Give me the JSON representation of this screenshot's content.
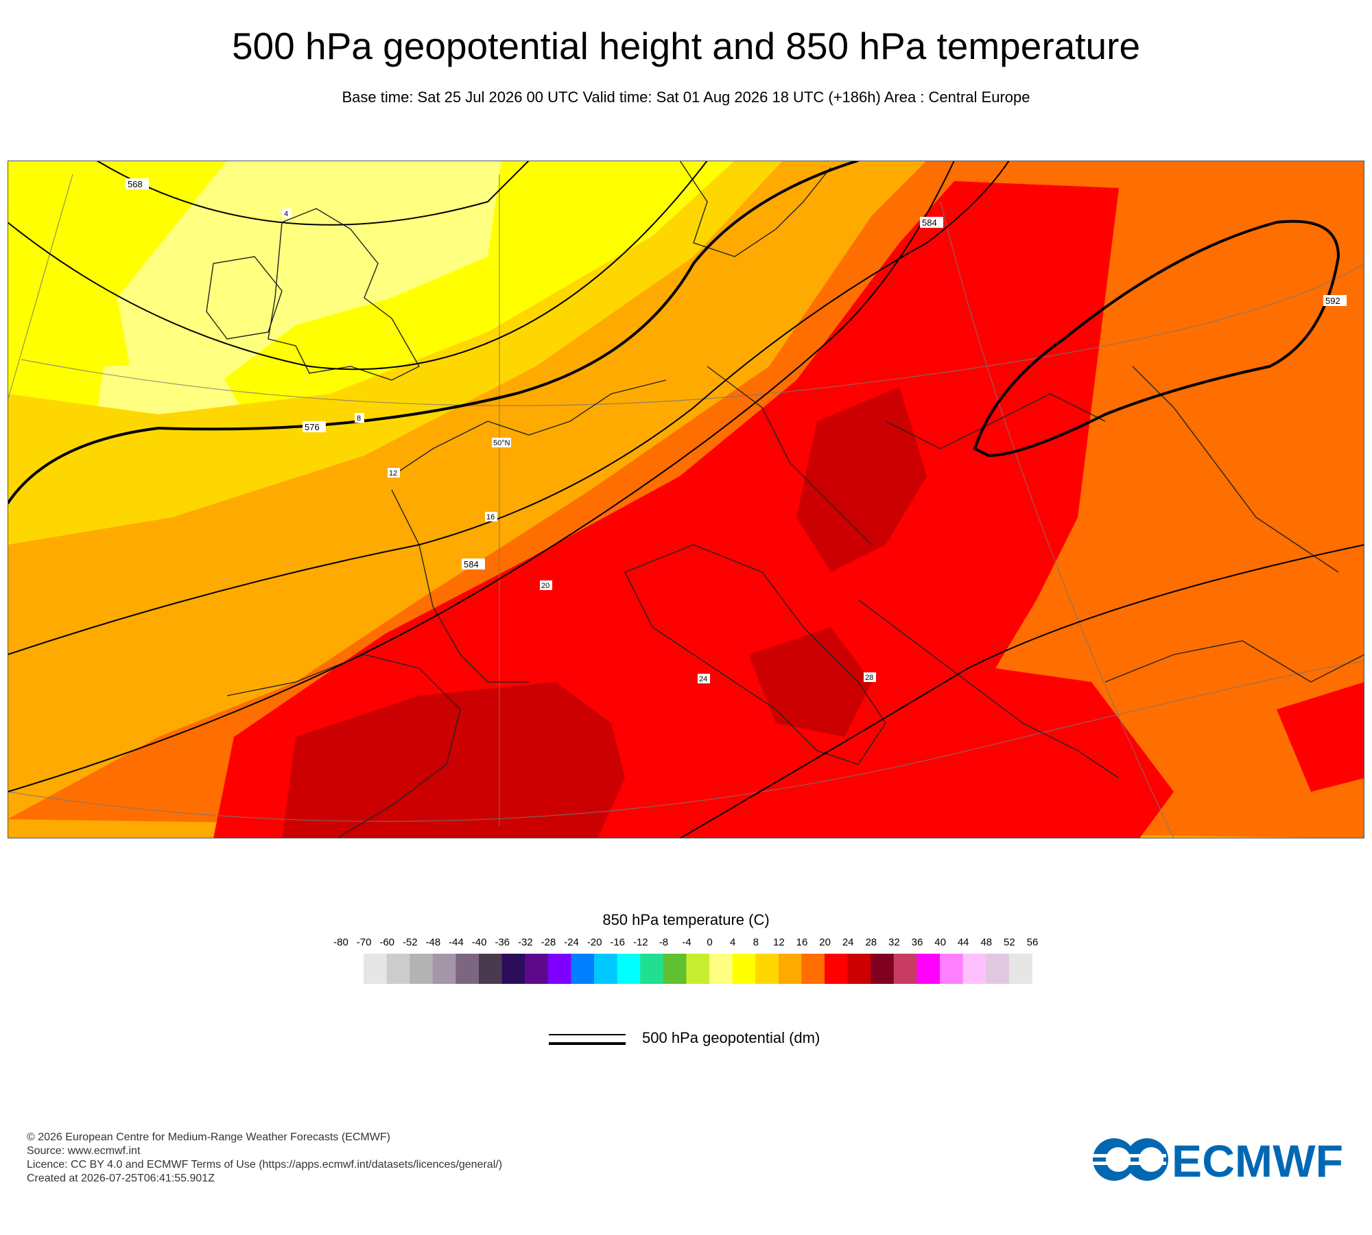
{
  "header": {
    "title": "500 hPa geopotential height and 850 hPa temperature",
    "subtitle": "Base time: Sat 25 Jul 2026 00 UTC Valid time: Sat 01 Aug 2026 18 UTC (+186h) Area : Central Europe"
  },
  "map": {
    "geopotential_contours": [
      "568",
      "576",
      "584",
      "592"
    ],
    "temperature_labels": [
      "4",
      "8",
      "12",
      "16",
      "20",
      "24",
      "28"
    ],
    "latitude_label": "50°N"
  },
  "colorbar": {
    "title": "850 hPa temperature (C)",
    "ticks": [
      "-80",
      "-70",
      "-60",
      "-52",
      "-48",
      "-44",
      "-40",
      "-36",
      "-32",
      "-28",
      "-24",
      "-20",
      "-16",
      "-12",
      "-8",
      "-4",
      "0",
      "4",
      "8",
      "12",
      "16",
      "20",
      "24",
      "28",
      "32",
      "36",
      "40",
      "44",
      "48",
      "52",
      "56"
    ],
    "colors": [
      "#e6e6e6",
      "#cccccc",
      "#b3b3b3",
      "#a496a8",
      "#7c6680",
      "#4a3a4e",
      "#2c0d5a",
      "#5c0a8a",
      "#7f00ff",
      "#0080ff",
      "#00c8ff",
      "#00ffff",
      "#20e090",
      "#60c030",
      "#c8ec30",
      "#ffff80",
      "#ffff00",
      "#ffd700",
      "#ffaa00",
      "#ff6e00",
      "#ff0000",
      "#cc0000",
      "#800020",
      "#c83c64",
      "#ff00ff",
      "#ff80ff",
      "#ffc0ff",
      "#e0c8e0",
      "#e6e6e6"
    ]
  },
  "legend": {
    "label": "500 hPa geopotential (dm)"
  },
  "footer": {
    "copyright": "© 2026 European Centre for Medium-Range Weather Forecasts (ECMWF)",
    "source": "Source: www.ecmwf.int",
    "licence": "Licence: CC BY 4.0 and ECMWF Terms of Use (https://apps.ecmwf.int/datasets/licences/general/)",
    "created": "Created at 2026-07-25T06:41:55.901Z"
  },
  "logo": {
    "text": "ECMWF",
    "color": "#0068b3"
  }
}
